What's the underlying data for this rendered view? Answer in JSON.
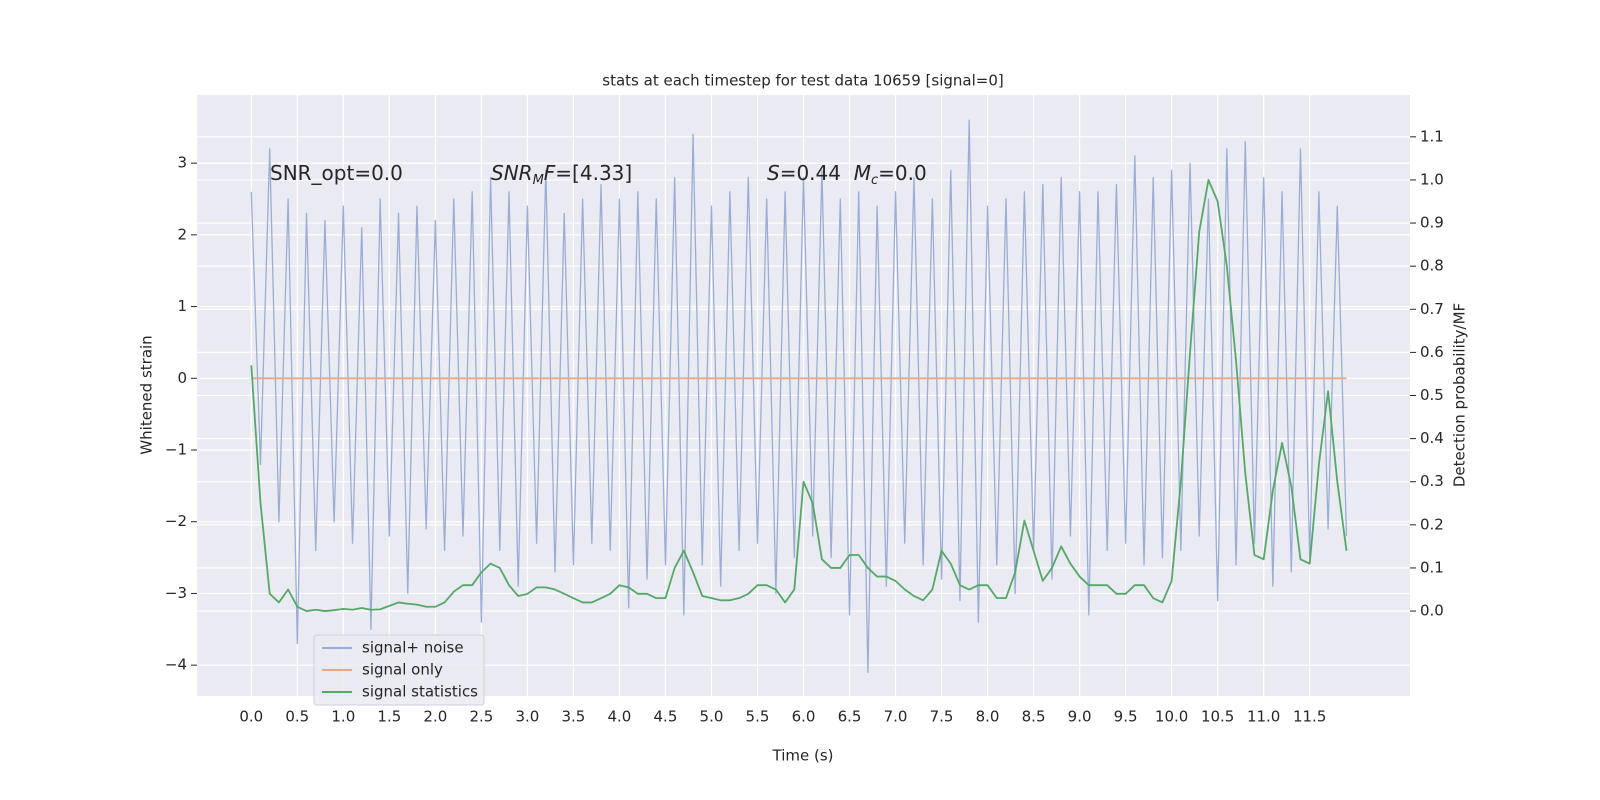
{
  "chart_data": {
    "type": "line",
    "title": "stats at each timestep for test data 10659 [signal=0]",
    "xlabel": "Time (s)",
    "ylabel": "Whitened strain",
    "y2label": "Detection probability/MF",
    "grid": true,
    "legend": "lower left",
    "xlim": [
      -0.59,
      12.59
    ],
    "ylim": [
      -4.43,
      3.95
    ],
    "y2lim": [
      -0.197,
      1.197
    ],
    "xticks": [
      {
        "value": 0,
        "label": "0.0"
      },
      {
        "value": 0.5,
        "label": "0.5"
      },
      {
        "value": 1,
        "label": "1.0"
      },
      {
        "value": 1.5,
        "label": "1.5"
      },
      {
        "value": 2,
        "label": "2.0"
      },
      {
        "value": 2.5,
        "label": "2.5"
      },
      {
        "value": 3,
        "label": "3.0"
      },
      {
        "value": 3.5,
        "label": "3.5"
      },
      {
        "value": 4,
        "label": "4.0"
      },
      {
        "value": 4.5,
        "label": "4.5"
      },
      {
        "value": 5,
        "label": "5.0"
      },
      {
        "value": 5.5,
        "label": "5.5"
      },
      {
        "value": 6,
        "label": "6.0"
      },
      {
        "value": 6.5,
        "label": "6.5"
      },
      {
        "value": 7,
        "label": "7.0"
      },
      {
        "value": 7.5,
        "label": "7.5"
      },
      {
        "value": 8,
        "label": "8.0"
      },
      {
        "value": 8.5,
        "label": "8.5"
      },
      {
        "value": 9,
        "label": "9.0"
      },
      {
        "value": 9.5,
        "label": "9.5"
      },
      {
        "value": 10,
        "label": "10.0"
      },
      {
        "value": 10.5,
        "label": "10.5"
      },
      {
        "value": 11,
        "label": "11.0"
      },
      {
        "value": 11.5,
        "label": "11.5"
      }
    ],
    "yticks": [
      {
        "value": -4,
        "label": "−4"
      },
      {
        "value": -3,
        "label": "−3"
      },
      {
        "value": -2,
        "label": "−2"
      },
      {
        "value": -1,
        "label": "−1"
      },
      0,
      1,
      2,
      3
    ],
    "y2ticks": [
      {
        "value": 0,
        "label": "0.0"
      },
      {
        "value": 0.1,
        "label": "0.1"
      },
      {
        "value": 0.2,
        "label": "0.2"
      },
      {
        "value": 0.3,
        "label": "0.3"
      },
      {
        "value": 0.4,
        "label": "0.4"
      },
      {
        "value": 0.5,
        "label": "0.5"
      },
      {
        "value": 0.6,
        "label": "0.6"
      },
      {
        "value": 0.7,
        "label": "0.7"
      },
      {
        "value": 0.8,
        "label": "0.8"
      },
      {
        "value": 0.9,
        "label": "0.9"
      },
      {
        "value": 1,
        "label": "1.0"
      },
      {
        "value": 1.1,
        "label": "1.1"
      }
    ],
    "annotations": [
      [
        {
          "text": "SNR_opt=0.0"
        }
      ],
      [
        {
          "text": "SNR",
          "style": "italic"
        },
        {
          "text": "M",
          "style": "sub"
        },
        {
          "text": "F",
          "style": "italic"
        },
        {
          "text": "=[4.33]"
        }
      ],
      [
        {
          "text": "S",
          "style": "italic"
        },
        {
          "text": "=0.44  "
        },
        {
          "text": "M",
          "style": "italic"
        },
        {
          "text": "c",
          "style": "sub"
        },
        {
          "text": "=0.0"
        }
      ]
    ],
    "x": [
      0,
      0.1,
      0.2,
      0.3,
      0.4,
      0.5,
      0.6,
      0.7,
      0.8,
      0.9,
      1,
      1.1,
      1.2,
      1.3,
      1.4,
      1.5,
      1.6,
      1.7,
      1.8,
      1.9,
      2,
      2.1,
      2.2,
      2.3,
      2.4,
      2.5,
      2.6,
      2.7,
      2.8,
      2.9,
      3,
      3.1,
      3.2,
      3.3,
      3.4,
      3.5,
      3.6,
      3.7,
      3.8,
      3.9,
      4,
      4.1,
      4.2,
      4.3,
      4.4,
      4.5,
      4.6,
      4.7,
      4.8,
      4.9,
      5,
      5.1,
      5.2,
      5.3,
      5.4,
      5.5,
      5.6,
      5.7,
      5.8,
      5.9,
      6,
      6.1,
      6.2,
      6.3,
      6.4,
      6.5,
      6.6,
      6.7,
      6.8,
      6.9,
      7,
      7.1,
      7.2,
      7.3,
      7.4,
      7.5,
      7.6,
      7.7,
      7.8,
      7.9,
      8,
      8.1,
      8.2,
      8.3,
      8.4,
      8.5,
      8.6,
      8.7,
      8.8,
      8.9,
      9,
      9.1,
      9.2,
      9.3,
      9.4,
      9.5,
      9.6,
      9.7,
      9.8,
      9.9,
      10,
      10.1,
      10.2,
      10.3,
      10.4,
      10.5,
      10.6,
      10.7,
      10.8,
      10.9,
      11,
      11.1,
      11.2,
      11.3,
      11.4,
      11.5,
      11.6,
      11.7,
      11.8,
      11.9
    ],
    "series": [
      {
        "name": "signal+ noise",
        "color": "#9aaed3",
        "values": [
          2.6,
          -1.2,
          3.2,
          -2.0,
          2.5,
          -3.7,
          2.3,
          -2.4,
          2.2,
          -2.0,
          2.4,
          -2.3,
          2.1,
          -3.5,
          2.5,
          -2.2,
          2.3,
          -3.0,
          2.4,
          -2.1,
          2.2,
          -2.4,
          2.5,
          -2.2,
          2.6,
          -3.4,
          2.8,
          -2.4,
          2.6,
          -2.9,
          2.4,
          -2.3,
          2.9,
          -2.7,
          2.3,
          -2.6,
          2.5,
          -2.3,
          2.7,
          -2.4,
          2.5,
          -3.2,
          2.6,
          -2.8,
          2.5,
          -2.6,
          2.8,
          -3.3,
          3.4,
          -2.6,
          2.4,
          -2.9,
          2.6,
          -2.4,
          2.8,
          -2.3,
          2.5,
          -3.0,
          2.6,
          -2.5,
          2.8,
          -2.2,
          2.9,
          -2.5,
          2.5,
          -3.3,
          2.6,
          -4.1,
          2.4,
          -2.9,
          2.6,
          -2.3,
          2.8,
          -2.6,
          2.5,
          -2.8,
          2.9,
          -3.1,
          3.6,
          -3.4,
          2.4,
          -2.6,
          2.5,
          -3.0,
          2.6,
          -2.4,
          2.7,
          -2.8,
          2.8,
          -2.2,
          2.6,
          -3.3,
          2.6,
          -2.4,
          2.7,
          -2.3,
          3.1,
          -2.6,
          2.8,
          -2.5,
          2.9,
          -2.4,
          3.0,
          -2.2,
          2.5,
          -3.1,
          3.2,
          -2.6,
          3.3,
          -2.3,
          2.8,
          -2.9,
          2.6,
          -2.7,
          3.2,
          -2.5,
          2.6,
          -2.1,
          2.4,
          -2.2
        ]
      },
      {
        "name": "signal only",
        "color": "#e8a98a",
        "values": [
          0,
          0,
          0,
          0,
          0,
          0,
          0,
          0,
          0,
          0,
          0,
          0,
          0,
          0,
          0,
          0,
          0,
          0,
          0,
          0,
          0,
          0,
          0,
          0,
          0,
          0,
          0,
          0,
          0,
          0,
          0,
          0,
          0,
          0,
          0,
          0,
          0,
          0,
          0,
          0,
          0,
          0,
          0,
          0,
          0,
          0,
          0,
          0,
          0,
          0,
          0,
          0,
          0,
          0,
          0,
          0,
          0,
          0,
          0,
          0,
          0,
          0,
          0,
          0,
          0,
          0,
          0,
          0,
          0,
          0,
          0,
          0,
          0,
          0,
          0,
          0,
          0,
          0,
          0,
          0,
          0,
          0,
          0,
          0,
          0,
          0,
          0,
          0,
          0,
          0,
          0,
          0,
          0,
          0,
          0,
          0,
          0,
          0,
          0,
          0,
          0,
          0,
          0,
          0,
          0,
          0,
          0,
          0,
          0,
          0,
          0,
          0,
          0,
          0,
          0,
          0,
          0,
          0,
          0,
          0
        ]
      },
      {
        "name": "signal statistics",
        "color": "#55a868",
        "axis": "y2",
        "values": [
          0.57,
          0.25,
          0.04,
          0.02,
          0.05,
          0.01,
          0.0,
          0.003,
          0.0,
          0.002,
          0.005,
          0.003,
          0.007,
          0.003,
          0.004,
          0.012,
          0.02,
          0.017,
          0.015,
          0.01,
          0.01,
          0.02,
          0.045,
          0.06,
          0.06,
          0.09,
          0.11,
          0.1,
          0.06,
          0.035,
          0.04,
          0.055,
          0.055,
          0.05,
          0.04,
          0.03,
          0.02,
          0.02,
          0.03,
          0.04,
          0.06,
          0.055,
          0.04,
          0.04,
          0.03,
          0.03,
          0.1,
          0.14,
          0.09,
          0.035,
          0.03,
          0.025,
          0.025,
          0.03,
          0.04,
          0.06,
          0.06,
          0.05,
          0.02,
          0.05,
          0.3,
          0.25,
          0.12,
          0.1,
          0.1,
          0.13,
          0.13,
          0.1,
          0.08,
          0.08,
          0.07,
          0.05,
          0.035,
          0.025,
          0.05,
          0.14,
          0.11,
          0.06,
          0.05,
          0.06,
          0.06,
          0.03,
          0.03,
          0.09,
          0.21,
          0.14,
          0.07,
          0.1,
          0.15,
          0.11,
          0.08,
          0.06,
          0.06,
          0.06,
          0.04,
          0.04,
          0.06,
          0.06,
          0.03,
          0.02,
          0.07,
          0.3,
          0.6,
          0.88,
          1.0,
          0.95,
          0.8,
          0.58,
          0.32,
          0.13,
          0.12,
          0.28,
          0.39,
          0.29,
          0.12,
          0.11,
          0.34,
          0.51,
          0.3,
          0.14
        ]
      }
    ]
  }
}
